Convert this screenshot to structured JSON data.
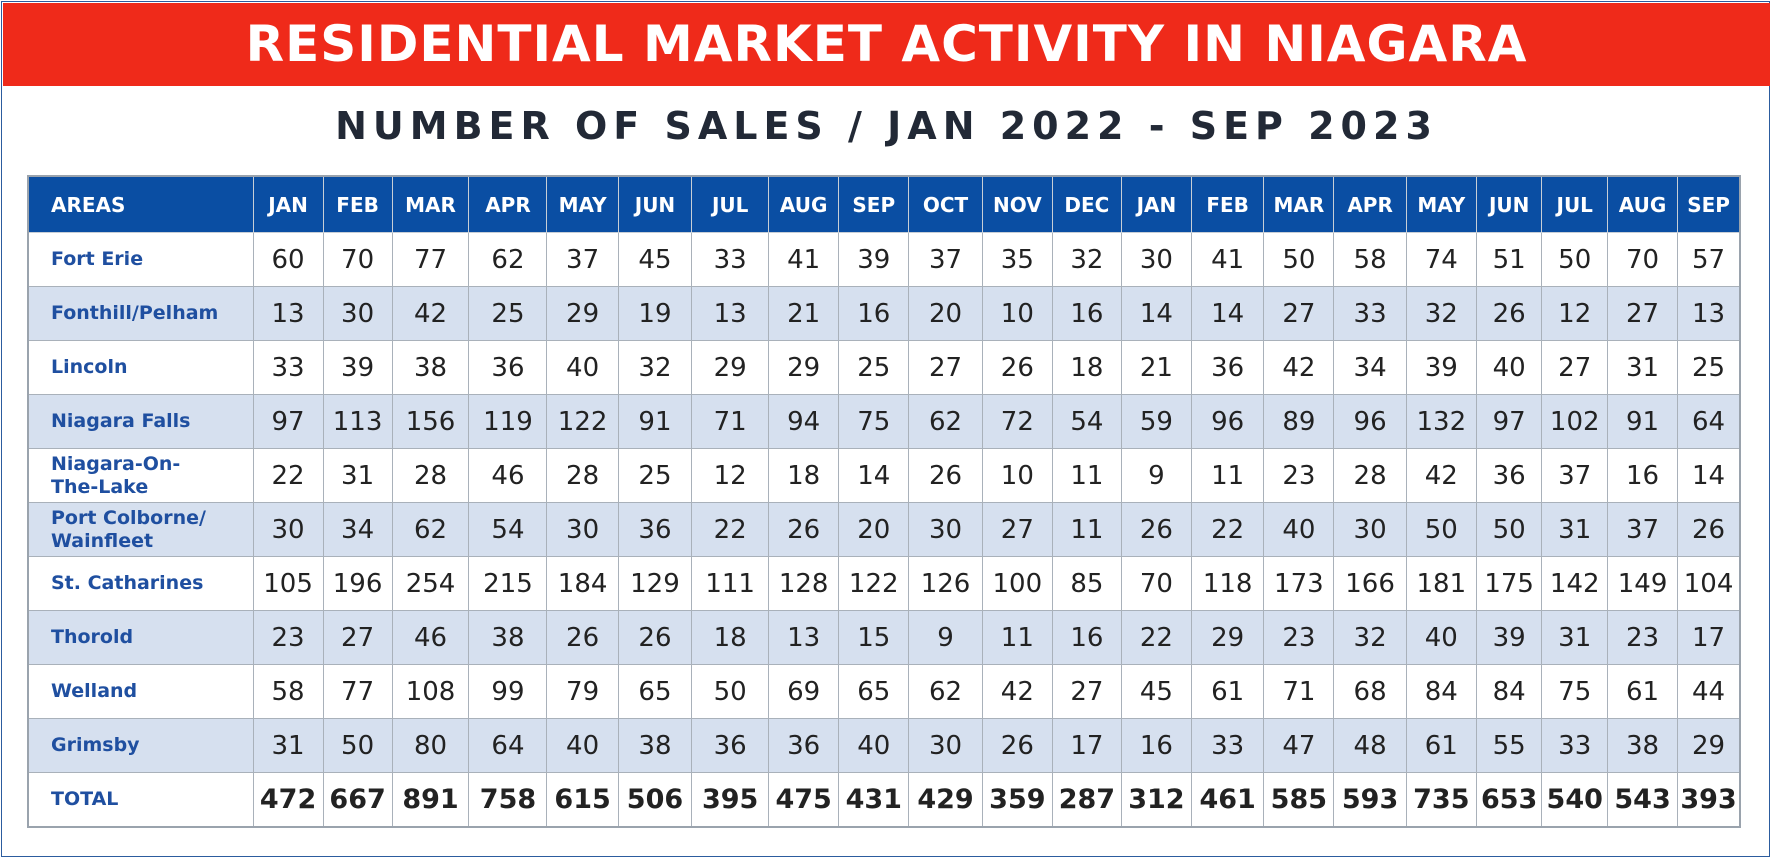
{
  "chart_data": {
    "type": "table",
    "title": "RESIDENTIAL MARKET ACTIVITY IN NIAGARA",
    "subtitle": "NUMBER OF SALES / JAN 2022 - SEP 2023",
    "area_header": "AREAS",
    "months": [
      "JAN",
      "FEB",
      "MAR",
      "APR",
      "MAY",
      "JUN",
      "JUL",
      "AUG",
      "SEP",
      "OCT",
      "NOV",
      "DEC",
      "JAN",
      "FEB",
      "MAR",
      "APR",
      "MAY",
      "JUN",
      "JUL",
      "AUG",
      "SEP"
    ],
    "rows": [
      {
        "area": "Fort Erie",
        "values": [
          60,
          70,
          77,
          62,
          37,
          45,
          33,
          41,
          39,
          37,
          35,
          32,
          30,
          41,
          50,
          58,
          74,
          51,
          50,
          70,
          57
        ]
      },
      {
        "area": "Fonthill/Pelham",
        "values": [
          13,
          30,
          42,
          25,
          29,
          19,
          13,
          21,
          16,
          20,
          10,
          16,
          14,
          14,
          27,
          33,
          32,
          26,
          12,
          27,
          13
        ]
      },
      {
        "area": "Lincoln",
        "values": [
          33,
          39,
          38,
          36,
          40,
          32,
          29,
          29,
          25,
          27,
          26,
          18,
          21,
          36,
          42,
          34,
          39,
          40,
          27,
          31,
          25
        ]
      },
      {
        "area": "Niagara Falls",
        "values": [
          97,
          113,
          156,
          119,
          122,
          91,
          71,
          94,
          75,
          62,
          72,
          54,
          59,
          96,
          89,
          96,
          132,
          97,
          102,
          91,
          64
        ]
      },
      {
        "area": "Niagara-On-\nThe-Lake",
        "values": [
          22,
          31,
          28,
          46,
          28,
          25,
          12,
          18,
          14,
          26,
          10,
          11,
          9,
          11,
          23,
          28,
          42,
          36,
          37,
          16,
          14
        ]
      },
      {
        "area": "Port Colborne/\nWainfleet",
        "values": [
          30,
          34,
          62,
          54,
          30,
          36,
          22,
          26,
          20,
          30,
          27,
          11,
          26,
          22,
          40,
          30,
          50,
          50,
          31,
          37,
          26
        ]
      },
      {
        "area": "St. Catharines",
        "values": [
          105,
          196,
          254,
          215,
          184,
          129,
          111,
          128,
          122,
          126,
          100,
          85,
          70,
          118,
          173,
          166,
          181,
          175,
          142,
          149,
          104
        ]
      },
      {
        "area": "Thorold",
        "values": [
          23,
          27,
          46,
          38,
          26,
          26,
          18,
          13,
          15,
          9,
          11,
          16,
          22,
          29,
          23,
          32,
          40,
          39,
          31,
          23,
          17
        ]
      },
      {
        "area": "Welland",
        "values": [
          58,
          77,
          108,
          99,
          79,
          65,
          50,
          69,
          65,
          62,
          42,
          27,
          45,
          61,
          71,
          68,
          84,
          84,
          75,
          61,
          44
        ]
      },
      {
        "area": "Grimsby",
        "values": [
          31,
          50,
          80,
          64,
          40,
          38,
          36,
          36,
          40,
          30,
          26,
          17,
          16,
          33,
          47,
          48,
          61,
          55,
          33,
          38,
          29
        ]
      }
    ],
    "total": {
      "area": "TOTAL",
      "values": [
        472,
        667,
        891,
        758,
        615,
        506,
        395,
        475,
        431,
        429,
        359,
        287,
        312,
        461,
        585,
        593,
        735,
        653,
        540,
        543,
        393
      ]
    }
  },
  "colors": {
    "banner": "#ef2a1a",
    "header": "#0a4ea3",
    "alt_row": "#d6e0ef",
    "area_text": "#1f4fa0"
  }
}
